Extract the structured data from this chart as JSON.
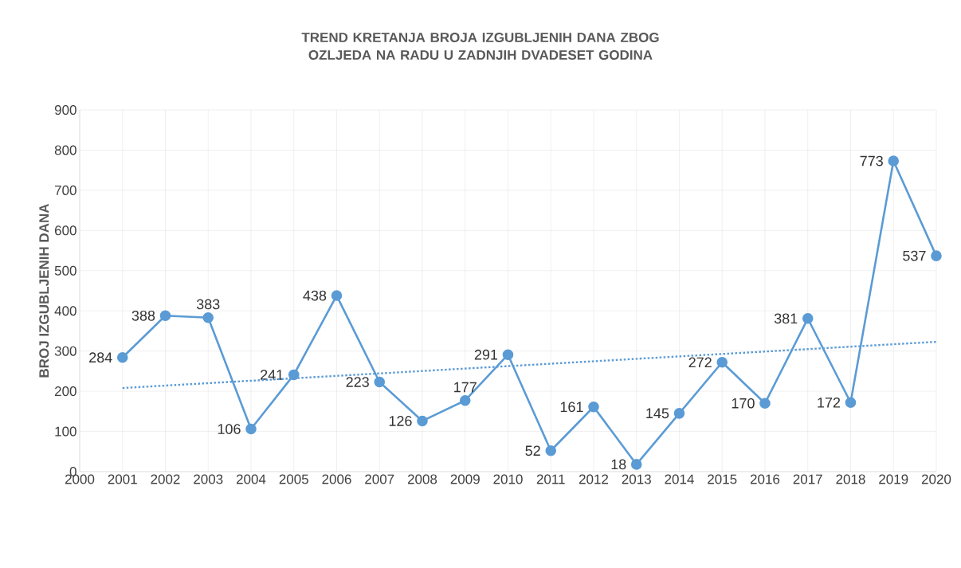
{
  "chart_data": {
    "type": "line",
    "title": "TREND KRETANJA BROJA IZGUBLJENIH DANA ZBOG OZLJEDA NA RADU U ZADNJIH DVADESET GODINA",
    "ylabel": "BROJ IZGUBLJENIH DANA",
    "xlim": [
      2000,
      2020
    ],
    "xticks": [
      2000,
      2001,
      2002,
      2003,
      2004,
      2005,
      2006,
      2007,
      2008,
      2009,
      2010,
      2011,
      2012,
      2013,
      2014,
      2015,
      2016,
      2017,
      2018,
      2019,
      2020
    ],
    "ylim": [
      0,
      900
    ],
    "yticks": [
      0,
      100,
      200,
      300,
      400,
      500,
      600,
      700,
      800,
      900
    ],
    "grid": true,
    "series": [
      {
        "color": "#5b9bd5",
        "marker": "circle",
        "line_style": "solid",
        "x": [
          2001,
          2002,
          2003,
          2004,
          2005,
          2006,
          2007,
          2008,
          2009,
          2010,
          2011,
          2012,
          2013,
          2014,
          2015,
          2016,
          2017,
          2018,
          2019,
          2020
        ],
        "values": [
          284,
          388,
          383,
          106,
          241,
          438,
          223,
          126,
          177,
          291,
          52,
          161,
          18,
          145,
          272,
          170,
          381,
          172,
          773,
          537
        ],
        "value_labels": [
          "284",
          "388",
          "383",
          "106",
          "241",
          "438",
          "223",
          "126",
          "177",
          "291",
          "52",
          "161",
          "18",
          "145",
          "272",
          "170",
          "381",
          "172",
          "773",
          "537"
        ]
      },
      {
        "type": "line",
        "color": "#5b9bd5",
        "marker": "none",
        "line_style": "dotted",
        "x": [
          2001,
          2020
        ],
        "values": [
          208,
          323
        ]
      }
    ]
  }
}
